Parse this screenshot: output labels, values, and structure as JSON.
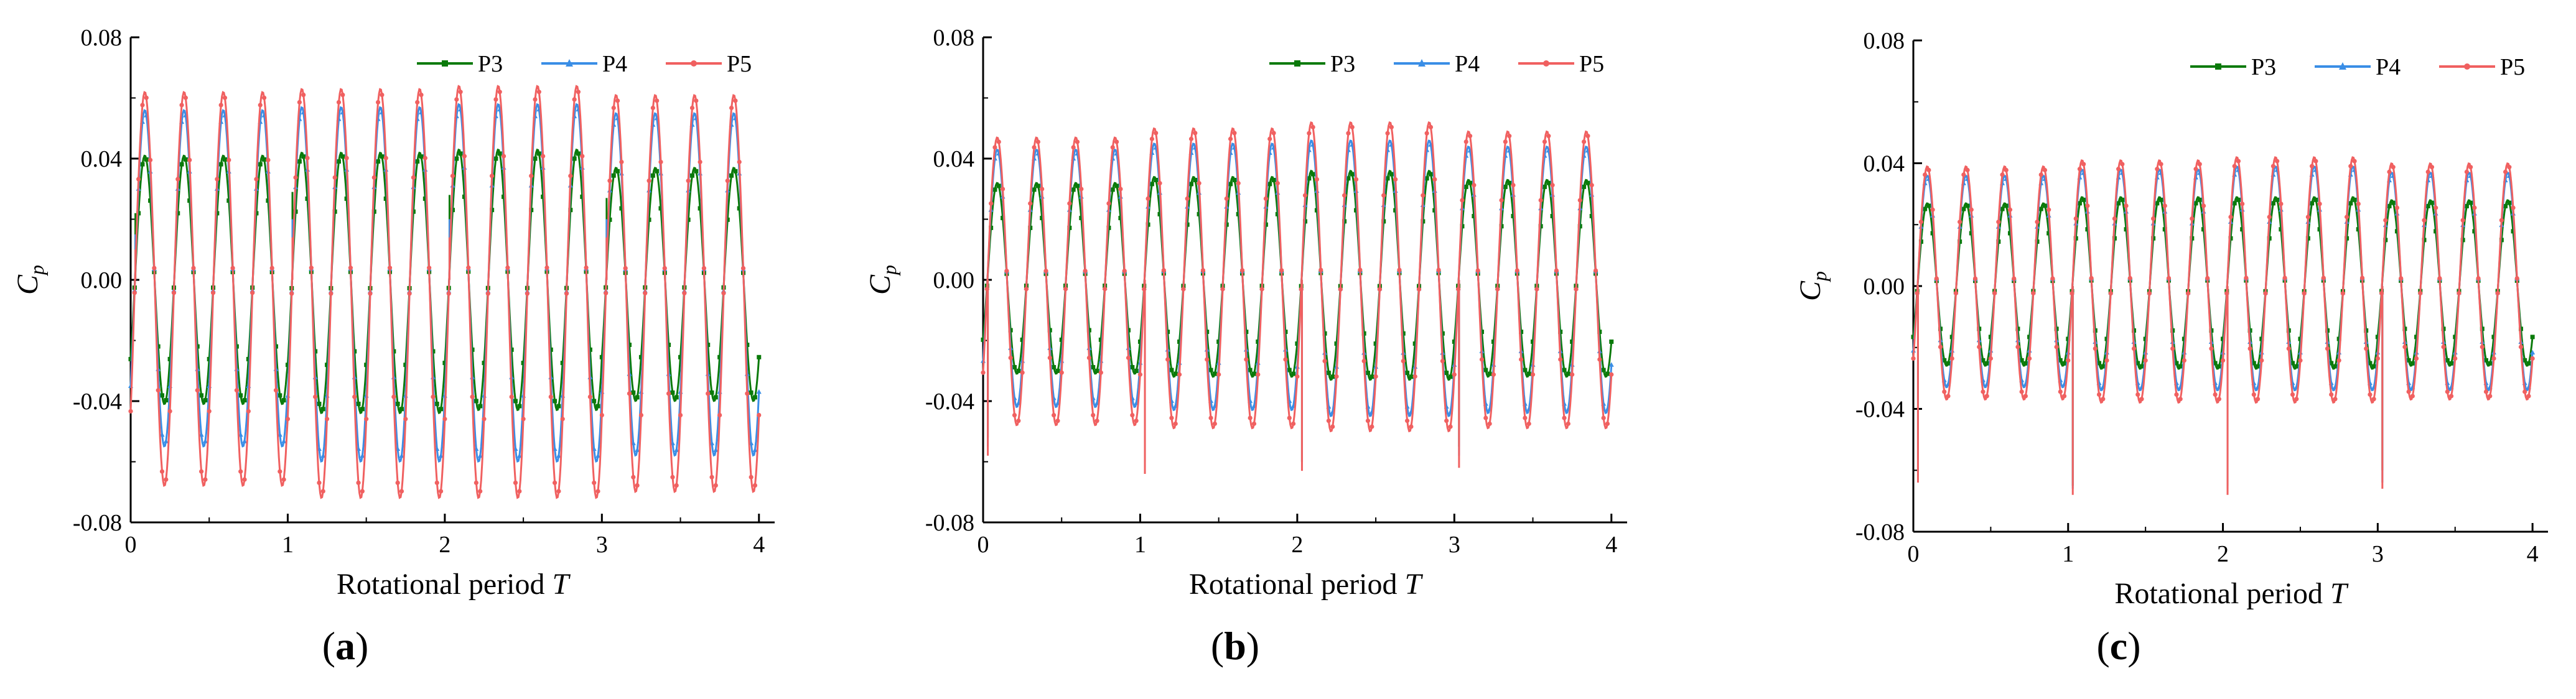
{
  "chart_data": [
    {
      "type": "line",
      "panel_label": "a",
      "title": "",
      "xlabel": "Rotational period",
      "xlabel_var": "T",
      "ylabel_var": "C",
      "ylabel_sub": "p",
      "xlim": [
        0,
        4.1
      ],
      "ylim": [
        -0.08,
        0.08
      ],
      "xticks": [
        0,
        1,
        2,
        3,
        4
      ],
      "yticks": [
        -0.08,
        -0.04,
        0.0,
        0.04,
        0.08
      ],
      "ytick_labels": [
        "-0.08",
        "-0.04",
        "0.00",
        "0.04",
        "0.08"
      ],
      "xtick_labels": [
        "0",
        "1",
        "2",
        "3",
        "4"
      ],
      "legend_position": "top-right",
      "waves_per_period": 4,
      "series": [
        {
          "name": "P3",
          "color": "#0a7a0a",
          "marker": "square",
          "offset": 0.0,
          "amplitude_peaks": [
            0.041,
            0.042,
            0.043,
            0.037
          ],
          "amplitude_troughs": [
            -0.041,
            -0.044,
            -0.043,
            -0.04
          ],
          "spike_values": [
            0.022,
            0.029,
            0.028,
            0.027
          ]
        },
        {
          "name": "P4",
          "color": "#3a8ee6",
          "marker": "triangle",
          "offset": 0.0,
          "amplitude_peaks": [
            0.056,
            0.057,
            0.058,
            0.055
          ],
          "amplitude_troughs": [
            -0.055,
            -0.06,
            -0.06,
            -0.058
          ],
          "spike_values": [
            0.015,
            0.02,
            0.02,
            0.02
          ]
        },
        {
          "name": "P5",
          "color": "#f06060",
          "marker": "circle",
          "offset": 0.0,
          "amplitude_peaks": [
            0.062,
            0.063,
            0.064,
            0.061
          ],
          "amplitude_troughs": [
            -0.068,
            -0.072,
            -0.072,
            -0.07
          ],
          "spike_values": [
            0.01,
            0.014,
            0.014,
            0.014
          ]
        }
      ]
    },
    {
      "type": "line",
      "panel_label": "b",
      "title": "",
      "xlabel": "Rotational period",
      "xlabel_var": "T",
      "ylabel_var": "C",
      "ylabel_sub": "p",
      "xlim": [
        0,
        4.1
      ],
      "ylim": [
        -0.08,
        0.08
      ],
      "xticks": [
        0,
        1,
        2,
        3,
        4
      ],
      "yticks": [
        -0.08,
        -0.04,
        0.0,
        0.04,
        0.08
      ],
      "ytick_labels": [
        "-0.08",
        "-0.04",
        "0.00",
        "0.04",
        "0.08"
      ],
      "xtick_labels": [
        "0",
        "1",
        "2",
        "3",
        "4"
      ],
      "legend_position": "top-right",
      "waves_per_period": 4,
      "series": [
        {
          "name": "P3",
          "color": "#0a7a0a",
          "marker": "square",
          "offset": 0.0,
          "amplitude_peaks": [
            0.032,
            0.034,
            0.036,
            0.033
          ],
          "amplitude_troughs": [
            -0.031,
            -0.032,
            -0.033,
            -0.032
          ],
          "spike_values": [
            -0.052,
            -0.06,
            -0.06,
            -0.055
          ]
        },
        {
          "name": "P4",
          "color": "#3a8ee6",
          "marker": "triangle",
          "offset": 0.0,
          "amplitude_peaks": [
            0.043,
            0.045,
            0.046,
            0.044
          ],
          "amplitude_troughs": [
            -0.042,
            -0.043,
            -0.045,
            -0.044
          ],
          "spike_values": [
            -0.055,
            -0.062,
            -0.06,
            -0.058
          ]
        },
        {
          "name": "P5",
          "color": "#f06060",
          "marker": "circle",
          "offset": 0.0,
          "amplitude_peaks": [
            0.047,
            0.05,
            0.052,
            0.049
          ],
          "amplitude_troughs": [
            -0.048,
            -0.049,
            -0.05,
            -0.049
          ],
          "spike_values": [
            -0.058,
            -0.064,
            -0.063,
            -0.062
          ]
        }
      ]
    },
    {
      "type": "line",
      "panel_label": "c",
      "title": "",
      "xlabel": "Rotational period",
      "xlabel_var": "T",
      "ylabel_var": "C",
      "ylabel_sub": "p",
      "xlim": [
        0,
        4.1
      ],
      "ylim": [
        -0.08,
        0.08
      ],
      "xticks": [
        0,
        1,
        2,
        3,
        4
      ],
      "yticks": [
        -0.08,
        -0.04,
        0.0,
        0.04,
        0.08
      ],
      "ytick_labels": [
        "-0.08",
        "-0.04",
        "0.00",
        "0.04",
        "0.08"
      ],
      "xtick_labels": [
        "0",
        "1",
        "2",
        "3",
        "4"
      ],
      "legend_position": "top-right",
      "waves_per_period": 4,
      "series": [
        {
          "name": "P3",
          "color": "#0a7a0a",
          "marker": "square",
          "offset": 0.0,
          "amplitude_peaks": [
            0.027,
            0.029,
            0.029,
            0.028
          ],
          "amplitude_troughs": [
            -0.026,
            -0.027,
            -0.027,
            -0.026
          ],
          "spike_values": [
            -0.06,
            -0.065,
            -0.065,
            -0.06
          ]
        },
        {
          "name": "P4",
          "color": "#3a8ee6",
          "marker": "triangle",
          "offset": 0.0,
          "amplitude_peaks": [
            0.036,
            0.038,
            0.039,
            0.037
          ],
          "amplitude_troughs": [
            -0.033,
            -0.034,
            -0.034,
            -0.034
          ],
          "spike_values": [
            -0.062,
            -0.066,
            -0.066,
            -0.064
          ]
        },
        {
          "name": "P5",
          "color": "#f06060",
          "marker": "circle",
          "offset": 0.0,
          "amplitude_peaks": [
            0.039,
            0.041,
            0.042,
            0.04
          ],
          "amplitude_troughs": [
            -0.037,
            -0.038,
            -0.038,
            -0.037
          ],
          "spike_values": [
            -0.064,
            -0.068,
            -0.068,
            -0.066
          ]
        }
      ]
    }
  ]
}
